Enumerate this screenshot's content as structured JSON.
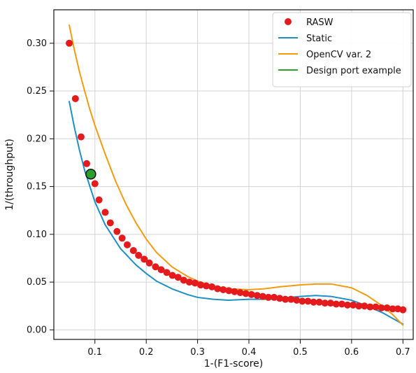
{
  "colors": {
    "rasw": "#e41a1c",
    "static": "#1f8fc6",
    "opencv": "#f39c12",
    "design": "#2ca02c",
    "grid": "#d3d3d3",
    "axis": "#111111"
  },
  "chart_data": {
    "type": "scatter",
    "title": "",
    "xlabel": "1-(F1-score)",
    "ylabel": "1/(throughput)",
    "xlim": [
      0.02,
      0.72
    ],
    "ylim": [
      -0.01,
      0.335
    ],
    "xticks": [
      0.1,
      0.2,
      0.3,
      0.4,
      0.5,
      0.6,
      0.7
    ],
    "yticks": [
      0.0,
      0.05,
      0.1,
      0.15,
      0.2,
      0.25,
      0.3
    ],
    "xtick_labels": [
      "0.1",
      "0.2",
      "0.3",
      "0.4",
      "0.5",
      "0.6",
      "0.7"
    ],
    "ytick_labels": [
      "0.00",
      "0.05",
      "0.10",
      "0.15",
      "0.20",
      "0.25",
      "0.30"
    ],
    "grid": true,
    "legend_position": "top-right",
    "series": [
      {
        "name": "RASW",
        "type": "scatter",
        "color": "#e41a1c",
        "x": [
          0.05,
          0.062,
          0.073,
          0.084,
          0.1,
          0.108,
          0.12,
          0.13,
          0.143,
          0.153,
          0.163,
          0.175,
          0.185,
          0.196,
          0.206,
          0.218,
          0.229,
          0.24,
          0.251,
          0.262,
          0.273,
          0.284,
          0.295,
          0.306,
          0.317,
          0.328,
          0.339,
          0.35,
          0.361,
          0.372,
          0.383,
          0.394,
          0.405,
          0.416,
          0.427,
          0.438,
          0.449,
          0.46,
          0.471,
          0.482,
          0.493,
          0.504,
          0.515,
          0.526,
          0.537,
          0.548,
          0.559,
          0.57,
          0.581,
          0.592,
          0.603,
          0.614,
          0.625,
          0.636,
          0.647,
          0.658,
          0.669,
          0.68,
          0.69,
          0.7
        ],
        "y": [
          0.3,
          0.242,
          0.202,
          0.174,
          0.153,
          0.136,
          0.123,
          0.112,
          0.103,
          0.096,
          0.089,
          0.083,
          0.078,
          0.074,
          0.07,
          0.066,
          0.063,
          0.06,
          0.057,
          0.055,
          0.052,
          0.05,
          0.049,
          0.047,
          0.046,
          0.045,
          0.043,
          0.042,
          0.041,
          0.04,
          0.039,
          0.038,
          0.037,
          0.036,
          0.035,
          0.034,
          0.034,
          0.033,
          0.032,
          0.032,
          0.031,
          0.03,
          0.03,
          0.029,
          0.029,
          0.028,
          0.028,
          0.027,
          0.027,
          0.026,
          0.026,
          0.025,
          0.025,
          0.024,
          0.024,
          0.023,
          0.023,
          0.022,
          0.022,
          0.021
        ]
      },
      {
        "name": "Static",
        "type": "line",
        "color": "#1f8fc6",
        "x": [
          0.05,
          0.06,
          0.07,
          0.08,
          0.1,
          0.12,
          0.15,
          0.18,
          0.2,
          0.22,
          0.25,
          0.28,
          0.3,
          0.33,
          0.36,
          0.4,
          0.43,
          0.46,
          0.5,
          0.53,
          0.56,
          0.6,
          0.63,
          0.66,
          0.68,
          0.7
        ],
        "y": [
          0.239,
          0.212,
          0.188,
          0.167,
          0.134,
          0.11,
          0.085,
          0.068,
          0.059,
          0.051,
          0.043,
          0.037,
          0.034,
          0.032,
          0.031,
          0.032,
          0.032,
          0.033,
          0.035,
          0.036,
          0.035,
          0.031,
          0.025,
          0.018,
          0.012,
          0.006
        ]
      },
      {
        "name": "OpenCV var. 2",
        "type": "line",
        "color": "#f39c12",
        "x": [
          0.05,
          0.06,
          0.07,
          0.08,
          0.09,
          0.1,
          0.12,
          0.14,
          0.16,
          0.18,
          0.2,
          0.22,
          0.25,
          0.28,
          0.3,
          0.33,
          0.36,
          0.4,
          0.43,
          0.46,
          0.5,
          0.53,
          0.56,
          0.6,
          0.63,
          0.66,
          0.68,
          0.7
        ],
        "y": [
          0.319,
          0.293,
          0.27,
          0.25,
          0.231,
          0.214,
          0.184,
          0.156,
          0.132,
          0.112,
          0.095,
          0.081,
          0.066,
          0.056,
          0.051,
          0.046,
          0.043,
          0.042,
          0.043,
          0.045,
          0.047,
          0.048,
          0.048,
          0.044,
          0.036,
          0.025,
          0.016,
          0.005
        ]
      },
      {
        "name": "Design port example",
        "type": "scatter",
        "color": "#2ca02c",
        "x": [
          0.092
        ],
        "y": [
          0.163
        ]
      }
    ]
  }
}
